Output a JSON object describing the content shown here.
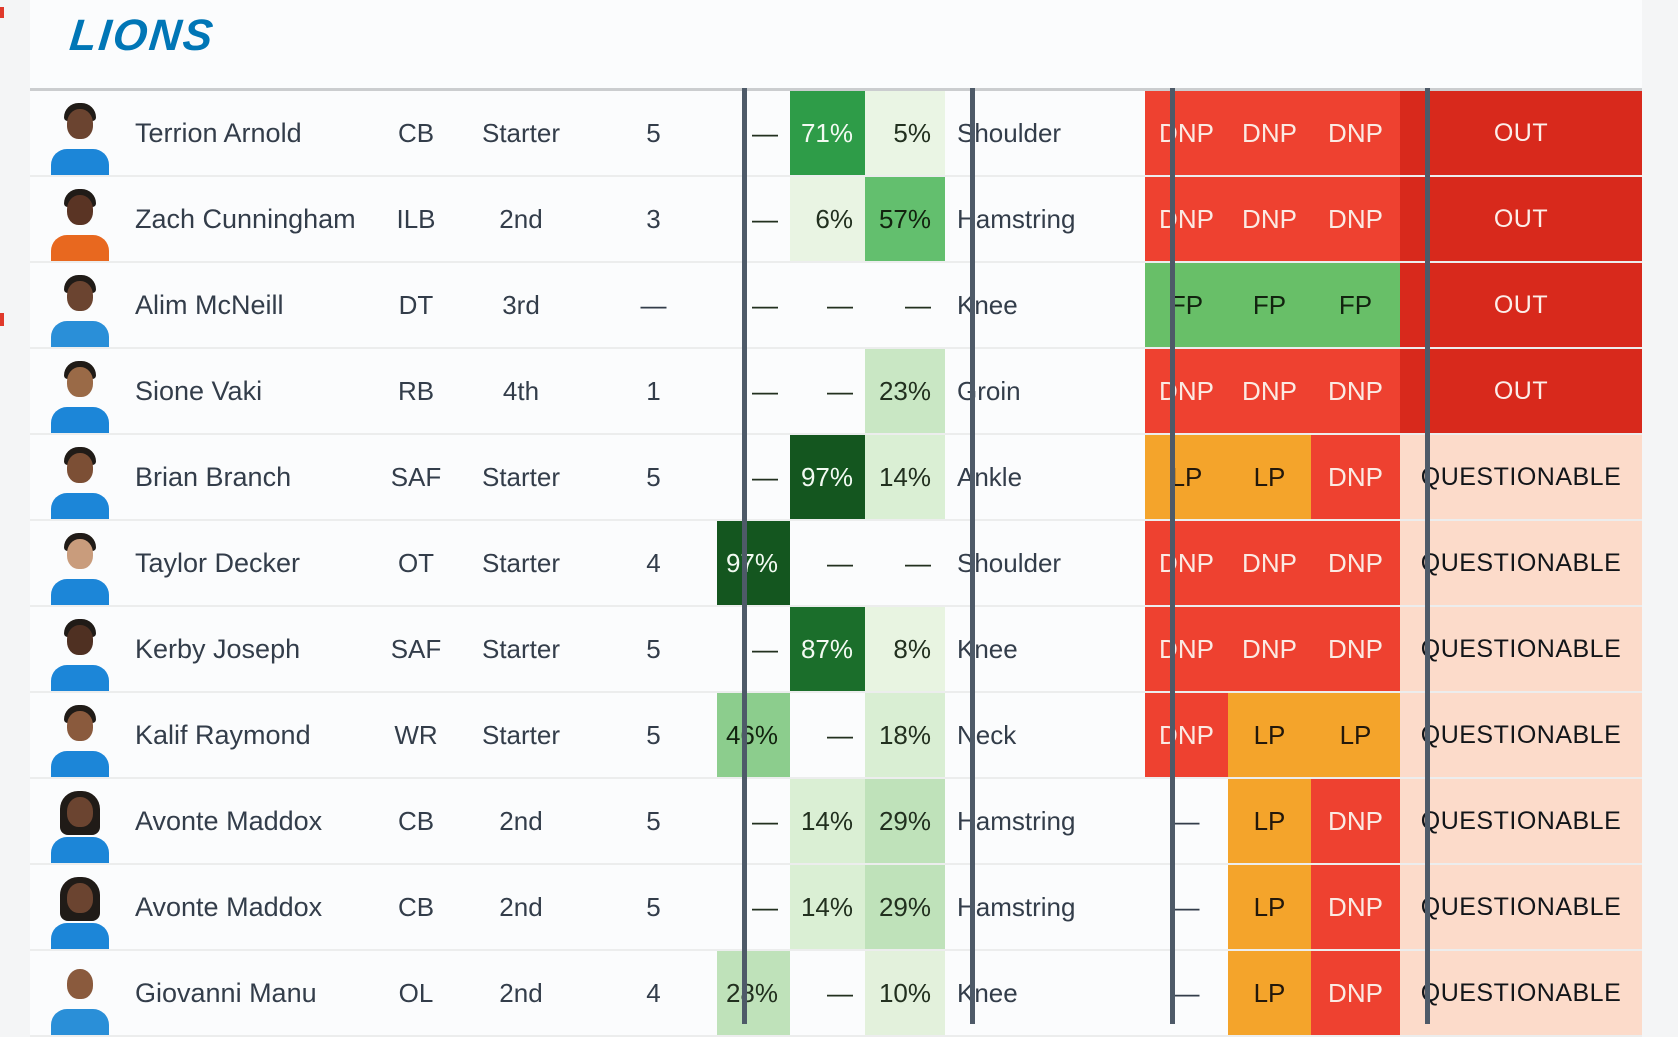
{
  "header": {
    "team_logo_text": "LIONS",
    "logo_color": "#0076b6"
  },
  "colors": {
    "separator_dark": "#4e5a68",
    "row_bg": "#fbfcfd",
    "page_bg": "#f4f5f6",
    "status_styles": {
      "dnp": {
        "bg": "#ee4130",
        "fg": "#fbeae3"
      },
      "lp": {
        "bg": "#f4a42b",
        "fg": "#23180b"
      },
      "fp": {
        "bg": "#68bf68",
        "fg": "#12230f"
      },
      "none": {
        "bg": "transparent",
        "fg": "#333d4a"
      },
      "out": {
        "bg": "#d8291c",
        "fg": "#fceee9"
      },
      "questionable": {
        "bg": "#fcdbca",
        "fg": "#121519"
      }
    }
  },
  "table": {
    "rows": [
      {
        "name": "Terrion Arnold",
        "pos": "CB",
        "depth": "Starter",
        "games": "5",
        "pct": [
          {
            "v": "—"
          },
          {
            "v": "71%",
            "bg": "#2e9c48",
            "fg": "#f2faf2"
          },
          {
            "v": "5%",
            "bg": "#eaf5e4"
          }
        ],
        "injury": "Shoulder",
        "practice": [
          {
            "v": "DNP",
            "t": "dnp"
          },
          {
            "v": "DNP",
            "t": "dnp"
          },
          {
            "v": "DNP",
            "t": "dnp"
          }
        ],
        "status": {
          "v": "OUT",
          "t": "out"
        },
        "avatar": {
          "jersey": "#1c86d8",
          "skin": "#6b4430",
          "hair": "short"
        }
      },
      {
        "name": "Zach Cunningham",
        "pos": "ILB",
        "depth": "2nd",
        "games": "3",
        "pct": [
          {
            "v": "—"
          },
          {
            "v": "6%",
            "bg": "#e9f4e3"
          },
          {
            "v": "57%",
            "bg": "#63bf6e",
            "fg": "#12230f"
          }
        ],
        "injury": "Hamstring",
        "practice": [
          {
            "v": "DNP",
            "t": "dnp"
          },
          {
            "v": "DNP",
            "t": "dnp"
          },
          {
            "v": "DNP",
            "t": "dnp"
          }
        ],
        "status": {
          "v": "OUT",
          "t": "out"
        },
        "avatar": {
          "jersey": "#e8681f",
          "skin": "#5a3424",
          "hair": "short"
        }
      },
      {
        "name": "Alim McNeill",
        "pos": "DT",
        "depth": "3rd",
        "games": "—",
        "pct": [
          {
            "v": "—"
          },
          {
            "v": "—"
          },
          {
            "v": "—"
          }
        ],
        "injury": "Knee",
        "practice": [
          {
            "v": "FP",
            "t": "fp"
          },
          {
            "v": "FP",
            "t": "fp"
          },
          {
            "v": "FP",
            "t": "fp"
          }
        ],
        "status": {
          "v": "OUT",
          "t": "out"
        },
        "avatar": {
          "jersey": "#2a8fd8",
          "skin": "#6b4430",
          "hair": "short"
        }
      },
      {
        "name": "Sione Vaki",
        "pos": "RB",
        "depth": "4th",
        "games": "1",
        "pct": [
          {
            "v": "—"
          },
          {
            "v": "—"
          },
          {
            "v": "23%",
            "bg": "#c9e7c4"
          }
        ],
        "injury": "Groin",
        "practice": [
          {
            "v": "DNP",
            "t": "dnp"
          },
          {
            "v": "DNP",
            "t": "dnp"
          },
          {
            "v": "DNP",
            "t": "dnp"
          }
        ],
        "status": {
          "v": "OUT",
          "t": "out"
        },
        "avatar": {
          "jersey": "#1c86d8",
          "skin": "#9a6a47",
          "hair": "short"
        }
      },
      {
        "name": "Brian Branch",
        "pos": "SAF",
        "depth": "Starter",
        "games": "5",
        "pct": [
          {
            "v": "—"
          },
          {
            "v": "97%",
            "bg": "#14561f",
            "fg": "#f2faf2"
          },
          {
            "v": "14%",
            "bg": "#daefd4"
          }
        ],
        "injury": "Ankle",
        "practice": [
          {
            "v": "LP",
            "t": "lp"
          },
          {
            "v": "LP",
            "t": "lp"
          },
          {
            "v": "DNP",
            "t": "dnp"
          }
        ],
        "status": {
          "v": "QUESTIONABLE",
          "t": "questionable"
        },
        "avatar": {
          "jersey": "#1c86d8",
          "skin": "#7c4f35",
          "hair": "short"
        }
      },
      {
        "name": "Taylor Decker",
        "pos": "OT",
        "depth": "Starter",
        "games": "4",
        "pct": [
          {
            "v": "97%",
            "bg": "#14561f",
            "fg": "#f2faf2"
          },
          {
            "v": "—"
          },
          {
            "v": "—"
          }
        ],
        "injury": "Shoulder",
        "practice": [
          {
            "v": "DNP",
            "t": "dnp"
          },
          {
            "v": "DNP",
            "t": "dnp"
          },
          {
            "v": "DNP",
            "t": "dnp"
          }
        ],
        "status": {
          "v": "QUESTIONABLE",
          "t": "questionable"
        },
        "avatar": {
          "jersey": "#1c86d8",
          "skin": "#c99c7c",
          "hair": "short"
        }
      },
      {
        "name": "Kerby Joseph",
        "pos": "SAF",
        "depth": "Starter",
        "games": "5",
        "pct": [
          {
            "v": "—"
          },
          {
            "v": "87%",
            "bg": "#1b6e2b",
            "fg": "#f2faf2"
          },
          {
            "v": "8%",
            "bg": "#e8f4e1"
          }
        ],
        "injury": "Knee",
        "practice": [
          {
            "v": "DNP",
            "t": "dnp"
          },
          {
            "v": "DNP",
            "t": "dnp"
          },
          {
            "v": "DNP",
            "t": "dnp"
          }
        ],
        "status": {
          "v": "QUESTIONABLE",
          "t": "questionable"
        },
        "avatar": {
          "jersey": "#1c86d8",
          "skin": "#4f3022",
          "hair": "short"
        }
      },
      {
        "name": "Kalif Raymond",
        "pos": "WR",
        "depth": "Starter",
        "games": "5",
        "pct": [
          {
            "v": "46%",
            "bg": "#8ccd8d",
            "fg": "#12230f"
          },
          {
            "v": "—"
          },
          {
            "v": "18%",
            "bg": "#d9eed3"
          }
        ],
        "injury": "Neck",
        "practice": [
          {
            "v": "DNP",
            "t": "dnp"
          },
          {
            "v": "LP",
            "t": "lp"
          },
          {
            "v": "LP",
            "t": "lp"
          }
        ],
        "status": {
          "v": "QUESTIONABLE",
          "t": "questionable"
        },
        "avatar": {
          "jersey": "#1c86d8",
          "skin": "#8a5a3d",
          "hair": "short"
        }
      },
      {
        "name": "Avonte Maddox",
        "pos": "CB",
        "depth": "2nd",
        "games": "5",
        "pct": [
          {
            "v": "—"
          },
          {
            "v": "14%",
            "bg": "#daefd4"
          },
          {
            "v": "29%",
            "bg": "#bfe2ba"
          }
        ],
        "injury": "Hamstring",
        "practice": [
          {
            "v": "—",
            "t": "none"
          },
          {
            "v": "LP",
            "t": "lp"
          },
          {
            "v": "DNP",
            "t": "dnp"
          }
        ],
        "status": {
          "v": "QUESTIONABLE",
          "t": "questionable"
        },
        "avatar": {
          "jersey": "#1c86d8",
          "skin": "#6b4430",
          "hair": "long"
        }
      },
      {
        "name": "Avonte Maddox",
        "pos": "CB",
        "depth": "2nd",
        "games": "5",
        "pct": [
          {
            "v": "—"
          },
          {
            "v": "14%",
            "bg": "#daefd4"
          },
          {
            "v": "29%",
            "bg": "#bfe2ba"
          }
        ],
        "injury": "Hamstring",
        "practice": [
          {
            "v": "—",
            "t": "none"
          },
          {
            "v": "LP",
            "t": "lp"
          },
          {
            "v": "DNP",
            "t": "dnp"
          }
        ],
        "status": {
          "v": "QUESTIONABLE",
          "t": "questionable"
        },
        "avatar": {
          "jersey": "#1c86d8",
          "skin": "#6b4430",
          "hair": "long"
        }
      },
      {
        "name": "Giovanni Manu",
        "pos": "OL",
        "depth": "2nd",
        "games": "4",
        "pct": [
          {
            "v": "28%",
            "bg": "#bfe2ba"
          },
          {
            "v": "—"
          },
          {
            "v": "10%",
            "bg": "#e3f1dc"
          }
        ],
        "injury": "Knee",
        "practice": [
          {
            "v": "—",
            "t": "none"
          },
          {
            "v": "LP",
            "t": "lp"
          },
          {
            "v": "DNP",
            "t": "dnp"
          }
        ],
        "status": {
          "v": "QUESTIONABLE",
          "t": "questionable"
        },
        "avatar": {
          "jersey": "#2a8fd8",
          "skin": "#8a5a3d",
          "hair": "bald"
        }
      }
    ]
  }
}
